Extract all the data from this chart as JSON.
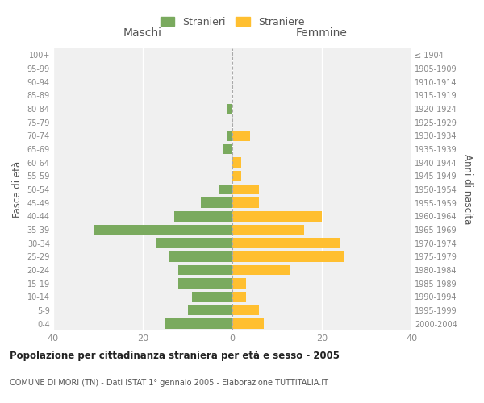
{
  "age_groups": [
    "0-4",
    "5-9",
    "10-14",
    "15-19",
    "20-24",
    "25-29",
    "30-34",
    "35-39",
    "40-44",
    "45-49",
    "50-54",
    "55-59",
    "60-64",
    "65-69",
    "70-74",
    "75-79",
    "80-84",
    "85-89",
    "90-94",
    "95-99",
    "100+"
  ],
  "birth_years": [
    "2000-2004",
    "1995-1999",
    "1990-1994",
    "1985-1989",
    "1980-1984",
    "1975-1979",
    "1970-1974",
    "1965-1969",
    "1960-1964",
    "1955-1959",
    "1950-1954",
    "1945-1949",
    "1940-1944",
    "1935-1939",
    "1930-1934",
    "1925-1929",
    "1920-1924",
    "1915-1919",
    "1910-1914",
    "1905-1909",
    "≤ 1904"
  ],
  "maschi": [
    15,
    10,
    9,
    12,
    12,
    14,
    17,
    31,
    13,
    7,
    3,
    0,
    0,
    2,
    1,
    0,
    1,
    0,
    0,
    0,
    0
  ],
  "femmine": [
    7,
    6,
    3,
    3,
    13,
    25,
    24,
    16,
    20,
    6,
    6,
    2,
    2,
    0,
    4,
    0,
    0,
    0,
    0,
    0,
    0
  ],
  "color_maschi": "#7aaa5e",
  "color_femmine": "#ffbf30",
  "title": "Popolazione per cittadinanza straniera per età e sesso - 2005",
  "subtitle": "COMUNE DI MORI (TN) - Dati ISTAT 1° gennaio 2005 - Elaborazione TUTTITALIA.IT",
  "xlabel_left": "Maschi",
  "xlabel_right": "Femmine",
  "ylabel_left": "Fasce di età",
  "ylabel_right": "Anni di nascita",
  "legend_maschi": "Stranieri",
  "legend_femmine": "Straniere",
  "xlim": 40,
  "bg_color": "#ffffff",
  "plot_bg": "#f0f0f0",
  "grid_color": "#ffffff",
  "bar_height": 0.75
}
